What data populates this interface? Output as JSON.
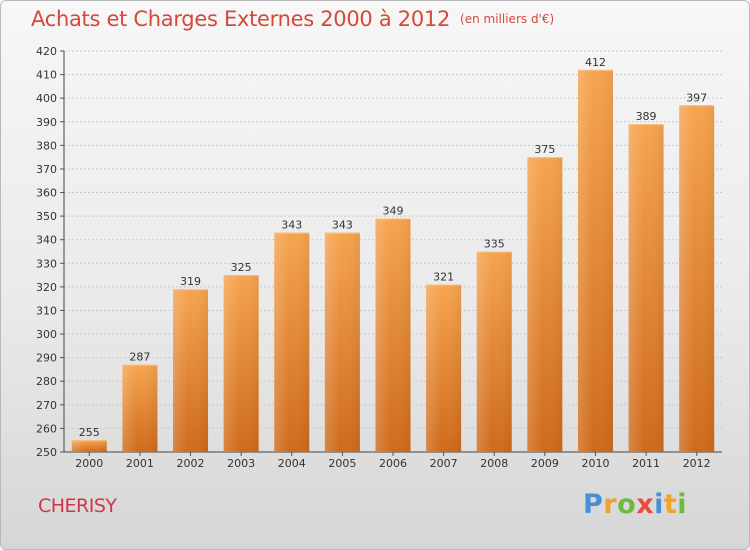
{
  "title": "Achats et Charges Externes 2000 à 2012",
  "unit_note": "(en milliers d'€)",
  "commune": "CHERISY",
  "logo": {
    "text": "Proxiti",
    "letters": [
      {
        "ch": "P",
        "color": "#4a8fd6"
      },
      {
        "ch": "r",
        "color": "#f0a22a"
      },
      {
        "ch": "o",
        "color": "#6dbb3c"
      },
      {
        "ch": "x",
        "color": "#e84c3d"
      },
      {
        "ch": "i",
        "color": "#4a8fd6"
      },
      {
        "ch": "t",
        "color": "#f0a22a"
      },
      {
        "ch": "i",
        "color": "#6dbb3c"
      }
    ]
  },
  "chart_data": {
    "type": "bar",
    "categories": [
      "2000",
      "2001",
      "2002",
      "2003",
      "2004",
      "2005",
      "2006",
      "2007",
      "2008",
      "2009",
      "2010",
      "2011",
      "2012"
    ],
    "values": [
      255,
      287,
      319,
      325,
      343,
      343,
      349,
      321,
      335,
      375,
      412,
      389,
      397
    ],
    "ylim": [
      250,
      420
    ],
    "yticks": [
      250,
      260,
      270,
      280,
      290,
      300,
      310,
      320,
      330,
      340,
      350,
      360,
      370,
      380,
      390,
      400,
      410,
      420
    ],
    "grid": true,
    "bar_color_top": "#f6a44f",
    "bar_color_bottom": "#cf6a1b",
    "title_color": "#d34a39"
  }
}
